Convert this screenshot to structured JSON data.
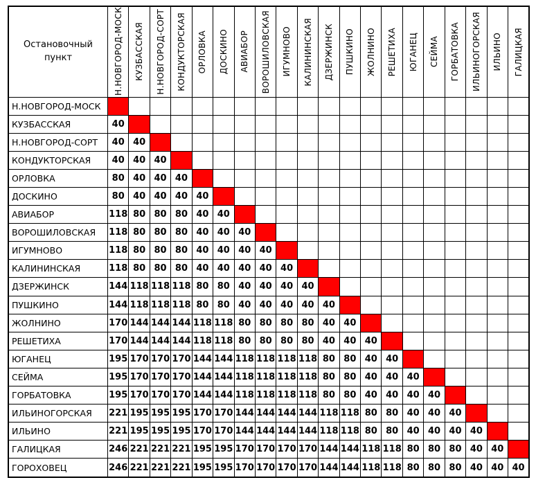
{
  "table": {
    "corner_label": "Остановочный пункт",
    "columns": [
      "Н.НОВГОРОД-МОСК",
      "КУЗБАССКАЯ",
      "Н.НОВГОРОД-СОРТ",
      "КОНДУКТОРСКАЯ",
      "ОРЛОВКА",
      "ДОСКИНО",
      "АВИАБОР",
      "ВОРОШИЛОВСКАЯ",
      "ИГУМНОВО",
      "КАЛИНИНСКАЯ",
      "ДЗЕРЖИНСК",
      "ПУШКИНО",
      "ЖОЛНИНО",
      "РЕШЕТИХА",
      "ЮГАНЕЦ",
      "СЕЙМА",
      "ГОРБАТОВКА",
      "ИЛЬИНОГОРСКАЯ",
      "ИЛЬИНО",
      "ГАЛИЦКАЯ"
    ],
    "rows": [
      {
        "label": "Н.НОВГОРОД-МОСК",
        "fares": []
      },
      {
        "label": "КУЗБАССКАЯ",
        "fares": [
          40
        ]
      },
      {
        "label": "Н.НОВГОРОД-СОРТ",
        "fares": [
          40,
          40
        ]
      },
      {
        "label": "КОНДУКТОРСКАЯ",
        "fares": [
          40,
          40,
          40
        ]
      },
      {
        "label": "ОРЛОВКА",
        "fares": [
          80,
          40,
          40,
          40
        ]
      },
      {
        "label": "ДОСКИНО",
        "fares": [
          80,
          40,
          40,
          40,
          40
        ]
      },
      {
        "label": "АВИАБОР",
        "fares": [
          118,
          80,
          80,
          80,
          40,
          40
        ]
      },
      {
        "label": "ВОРОШИЛОВСКАЯ",
        "fares": [
          118,
          80,
          80,
          80,
          40,
          40,
          40
        ]
      },
      {
        "label": "ИГУМНОВО",
        "fares": [
          118,
          80,
          80,
          80,
          40,
          40,
          40,
          40
        ]
      },
      {
        "label": "КАЛИНИНСКАЯ",
        "fares": [
          118,
          80,
          80,
          80,
          40,
          40,
          40,
          40,
          40
        ]
      },
      {
        "label": "ДЗЕРЖИНСК",
        "fares": [
          144,
          118,
          118,
          118,
          80,
          80,
          40,
          40,
          40,
          40
        ]
      },
      {
        "label": "ПУШКИНО",
        "fares": [
          144,
          118,
          118,
          118,
          80,
          80,
          40,
          40,
          40,
          40,
          40
        ]
      },
      {
        "label": "ЖОЛНИНО",
        "fares": [
          170,
          144,
          144,
          144,
          118,
          118,
          80,
          80,
          80,
          80,
          40,
          40
        ]
      },
      {
        "label": "РЕШЕТИХА",
        "fares": [
          170,
          144,
          144,
          144,
          118,
          118,
          80,
          80,
          80,
          80,
          40,
          40,
          40
        ]
      },
      {
        "label": "ЮГАНЕЦ",
        "fares": [
          195,
          170,
          170,
          170,
          144,
          144,
          118,
          118,
          118,
          118,
          80,
          80,
          40,
          40
        ]
      },
      {
        "label": "СЕЙМА",
        "fares": [
          195,
          170,
          170,
          170,
          144,
          144,
          118,
          118,
          118,
          118,
          80,
          80,
          40,
          40,
          40
        ]
      },
      {
        "label": "ГОРБАТОВКА",
        "fares": [
          195,
          170,
          170,
          170,
          144,
          144,
          118,
          118,
          118,
          118,
          80,
          80,
          40,
          40,
          40,
          40
        ]
      },
      {
        "label": "ИЛЬИНОГОРСКАЯ",
        "fares": [
          221,
          195,
          195,
          195,
          170,
          170,
          144,
          144,
          144,
          144,
          118,
          118,
          80,
          80,
          40,
          40,
          40
        ]
      },
      {
        "label": "ИЛЬИНО",
        "fares": [
          221,
          195,
          195,
          195,
          170,
          170,
          144,
          144,
          144,
          144,
          118,
          118,
          80,
          80,
          40,
          40,
          40,
          40
        ]
      },
      {
        "label": "ГАЛИЦКАЯ",
        "fares": [
          246,
          221,
          221,
          221,
          195,
          195,
          170,
          170,
          170,
          170,
          144,
          144,
          118,
          118,
          80,
          80,
          80,
          40,
          40
        ]
      },
      {
        "label": "ГОРОХОВЕЦ",
        "fares": [
          246,
          221,
          221,
          221,
          195,
          195,
          170,
          170,
          170,
          170,
          144,
          144,
          118,
          118,
          80,
          80,
          80,
          40,
          40,
          40
        ]
      }
    ],
    "colors": {
      "diagonal_fill": "#FF0000",
      "border": "#000000",
      "text": "#000000"
    }
  }
}
